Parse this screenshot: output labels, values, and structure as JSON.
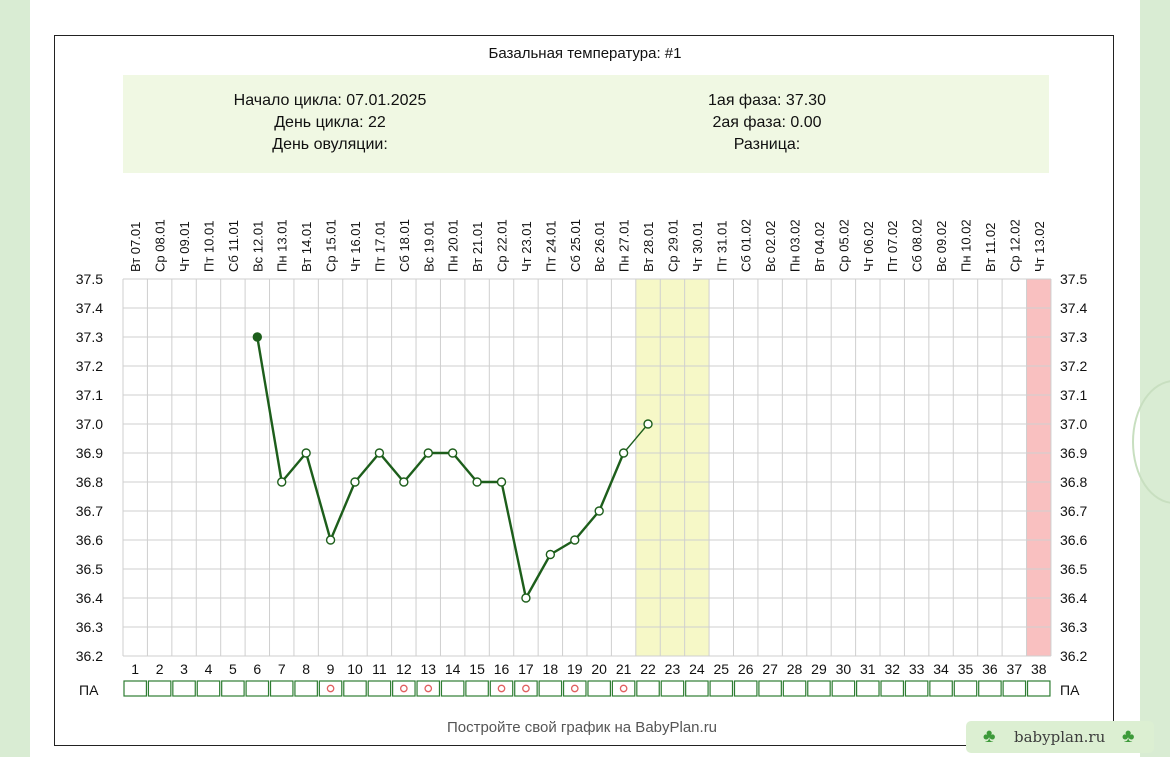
{
  "title": "Базальная температура: #1",
  "info": {
    "left": [
      "Начало цикла: 07.01.2025",
      "День цикла: 22",
      "День овуляции:"
    ],
    "right": [
      "1ая фаза: 37.30",
      "2ая фаза: 0.00",
      "Разница:"
    ]
  },
  "footer": "Постройте свой график на BabyPlan.ru",
  "watermark": {
    "text": "babyplan.ru",
    "icon": "clover-icon"
  },
  "pa_label": "ПА",
  "colors": {
    "line": "#1d5e1b",
    "grid": "#cfcfcf",
    "info_bg": "#f0f8e3",
    "highlight_yellow": "#f6f8c7",
    "highlight_red": "#f9c0c0",
    "pa_border": "#2e7d32",
    "pa_mark": "#e06060"
  },
  "chart_data": {
    "type": "line",
    "y_range": [
      36.2,
      37.5
    ],
    "y_ticks": [
      "37.5",
      "37.4",
      "37.3",
      "37.2",
      "37.1",
      "37.0",
      "36.9",
      "36.8",
      "36.7",
      "36.6",
      "36.5",
      "36.4",
      "36.3",
      "36.2"
    ],
    "days": [
      "1",
      "2",
      "3",
      "4",
      "5",
      "6",
      "7",
      "8",
      "9",
      "10",
      "11",
      "12",
      "13",
      "14",
      "15",
      "16",
      "17",
      "18",
      "19",
      "20",
      "21",
      "22",
      "23",
      "24",
      "25",
      "26",
      "27",
      "28",
      "29",
      "30",
      "31",
      "32",
      "33",
      "34",
      "35",
      "36",
      "37",
      "38"
    ],
    "dates": [
      "Вт 07.01",
      "Ср 08.01",
      "Чт 09.01",
      "Пт 10.01",
      "Сб 11.01",
      "Вс 12.01",
      "Пн 13.01",
      "Вт 14.01",
      "Ср 15.01",
      "Чт 16.01",
      "Пт 17.01",
      "Сб 18.01",
      "Вс 19.01",
      "Пн 20.01",
      "Вт 21.01",
      "Ср 22.01",
      "Чт 23.01",
      "Пт 24.01",
      "Сб 25.01",
      "Вс 26.01",
      "Пн 27.01",
      "Вт 28.01",
      "Ср 29.01",
      "Чт 30.01",
      "Пт 31.01",
      "Сб 01.02",
      "Вс 02.02",
      "Пн 03.02",
      "Вт 04.02",
      "Ср 05.02",
      "Чт 06.02",
      "Пт 07.02",
      "Сб 08.02",
      "Вс 09.02",
      "Пн 10.02",
      "Вт 11.02",
      "Ср 12.02",
      "Чт 13.02"
    ],
    "temperature": [
      {
        "day": 6,
        "value": 37.3,
        "filled": true
      },
      {
        "day": 7,
        "value": 36.8
      },
      {
        "day": 8,
        "value": 36.9
      },
      {
        "day": 9,
        "value": 36.6
      },
      {
        "day": 10,
        "value": 36.8
      },
      {
        "day": 11,
        "value": 36.9
      },
      {
        "day": 12,
        "value": 36.8
      },
      {
        "day": 13,
        "value": 36.9
      },
      {
        "day": 14,
        "value": 36.9
      },
      {
        "day": 15,
        "value": 36.8
      },
      {
        "day": 16,
        "value": 36.8
      },
      {
        "day": 17,
        "value": 36.4
      },
      {
        "day": 18,
        "value": 36.55
      },
      {
        "day": 19,
        "value": 36.6
      },
      {
        "day": 20,
        "value": 36.7
      },
      {
        "day": 21,
        "value": 36.9
      },
      {
        "day": 22,
        "value": 37.0
      }
    ],
    "solid_line_days": [
      6,
      21
    ],
    "highlight_days_yellow": [
      22,
      23,
      24
    ],
    "highlight_days_red": [
      38
    ],
    "pa_days": [
      9,
      12,
      13,
      16,
      17,
      19,
      21
    ]
  }
}
